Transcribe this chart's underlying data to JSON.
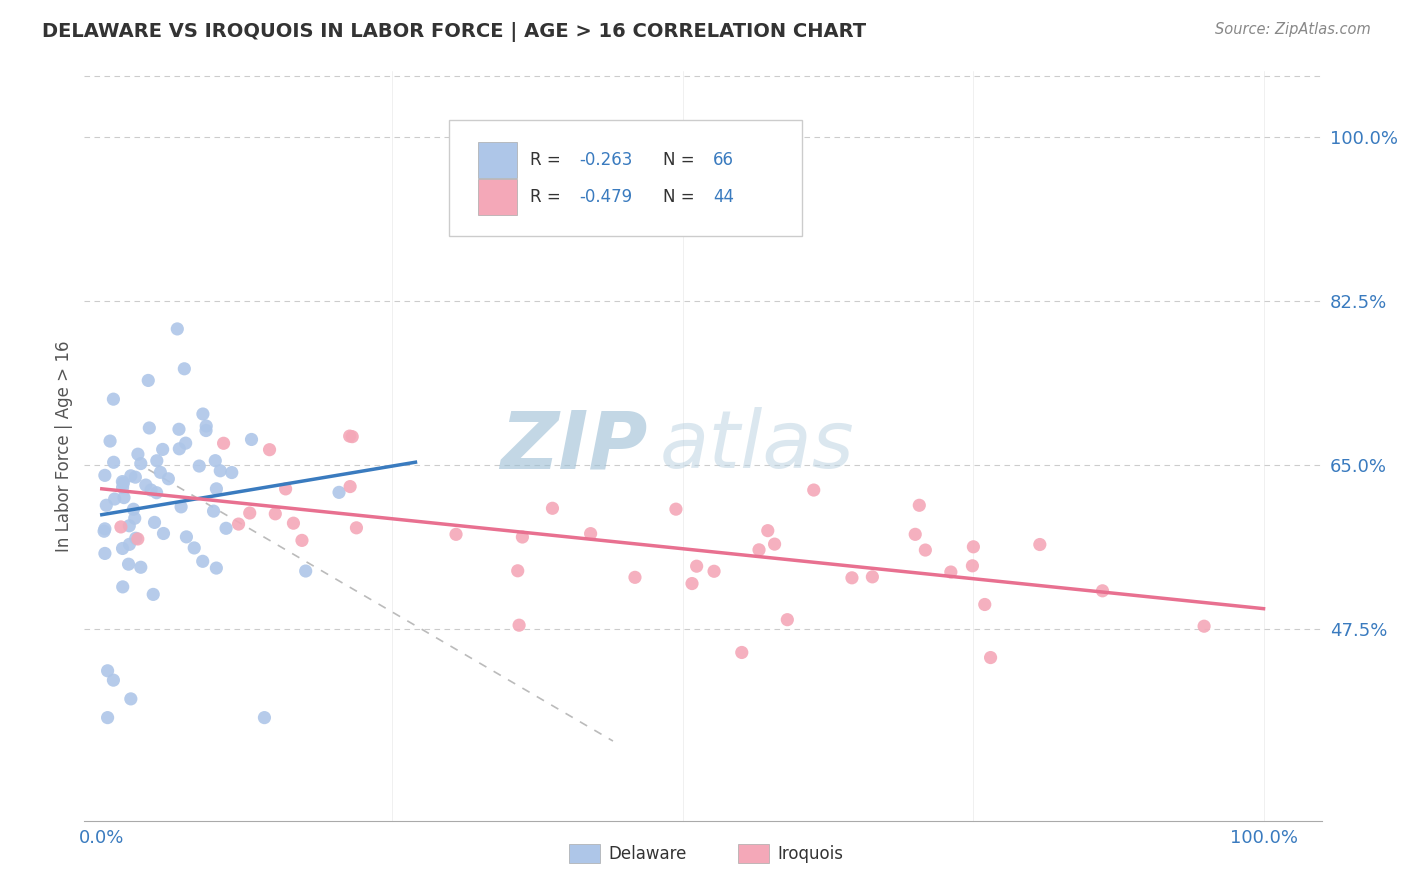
{
  "title": "DELAWARE VS IROQUOIS IN LABOR FORCE | AGE > 16 CORRELATION CHART",
  "source": "Source: ZipAtlas.com",
  "ylabel": "In Labor Force | Age > 16",
  "y_tick_values": [
    0.475,
    0.65,
    0.825,
    1.0
  ],
  "y_tick_labels": [
    "47.5%",
    "65.0%",
    "82.5%",
    "100.0%"
  ],
  "x_tick_values": [
    0.0,
    1.0
  ],
  "x_tick_labels": [
    "0.0%",
    "100.0%"
  ],
  "delaware_color": "#aec6e8",
  "iroquois_color": "#f4a8b8",
  "delaware_line_color": "#3a7bbf",
  "iroquois_line_color": "#e87090",
  "R_delaware": -0.263,
  "N_delaware": 66,
  "R_iroquois": -0.479,
  "N_iroquois": 44,
  "watermark_zip": "ZIP",
  "watermark_atlas": "atlas",
  "watermark_color_zip": "#b8cfe0",
  "watermark_color_atlas": "#c8dce8",
  "background_color": "#ffffff",
  "grid_color": "#cccccc",
  "title_color": "#333333",
  "source_color": "#888888",
  "legend_box_color_delaware": "#aec6e8",
  "legend_box_color_iroquois": "#f4a8b8",
  "xlim": [
    -0.015,
    1.05
  ],
  "ylim": [
    0.27,
    1.07
  ]
}
